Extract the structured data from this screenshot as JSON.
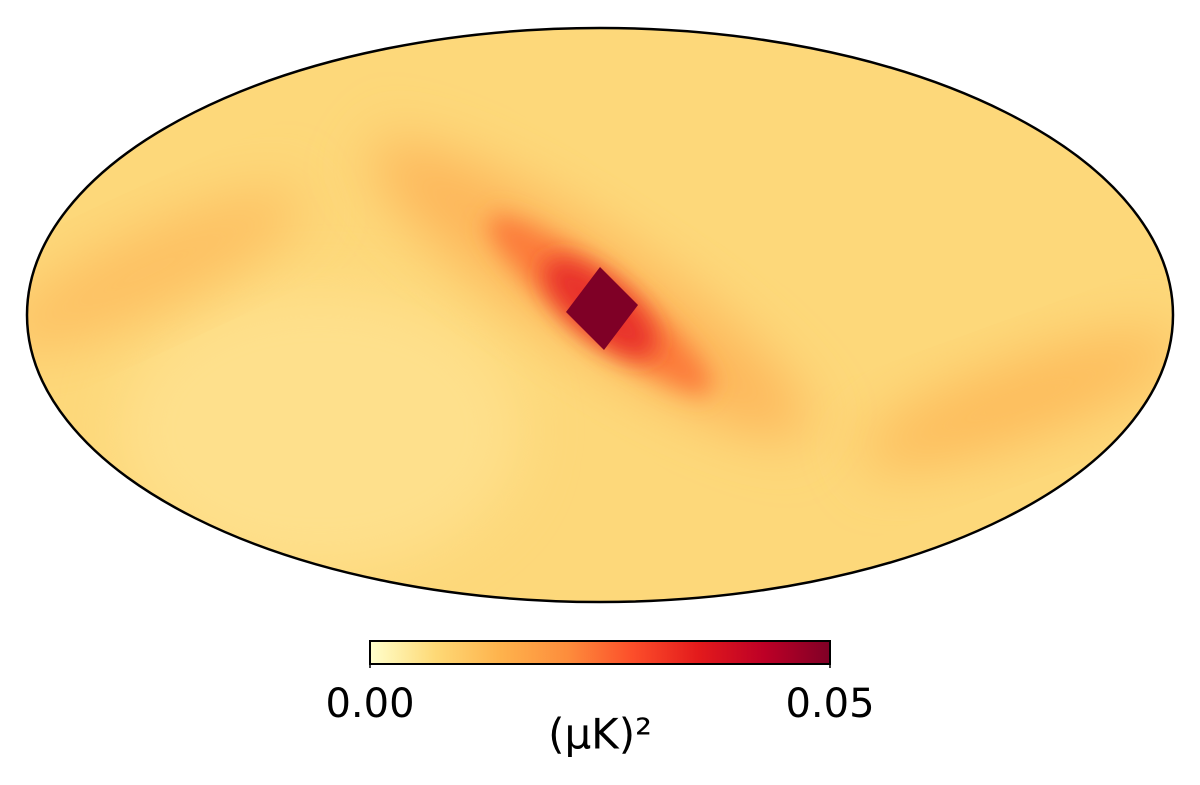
{
  "chart_data": {
    "type": "mollweide",
    "colorbar": {
      "label": "(μK)²",
      "lim": [
        0,
        0.05
      ],
      "ticks": [
        {
          "value": 0,
          "label": "0.00"
        },
        {
          "value": 0.05,
          "label": "0.05"
        }
      ],
      "colormap": [
        "#ffffcc",
        "#fed976",
        "#feb24c",
        "#fd8d3c",
        "#fc4e2a",
        "#e31a1c",
        "#bd0026",
        "#800026"
      ]
    }
  }
}
